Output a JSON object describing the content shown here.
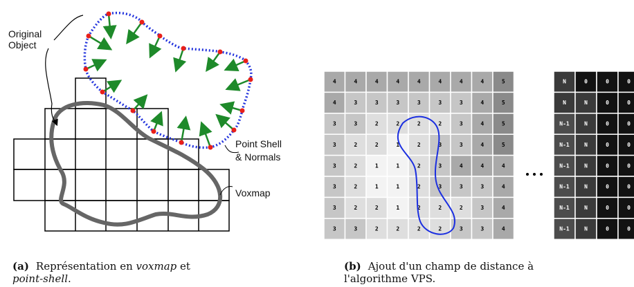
{
  "figure_a": {
    "labels": {
      "original_object": [
        "Original",
        "Object"
      ],
      "point_shell": [
        "Point Shell",
        "& Normals"
      ],
      "voxmap": "Voxmap"
    },
    "caption": {
      "tag": "(a)",
      "parts": [
        "Représentation en ",
        "voxmap",
        " et ",
        "point-shell",
        "."
      ]
    }
  },
  "figure_b": {
    "grid": [
      [
        4,
        4,
        4,
        4,
        4,
        4,
        4,
        4,
        5
      ],
      [
        4,
        3,
        3,
        3,
        3,
        3,
        3,
        4,
        5
      ],
      [
        3,
        3,
        2,
        2,
        2,
        2,
        3,
        4,
        5
      ],
      [
        3,
        2,
        2,
        1,
        2,
        3,
        3,
        4,
        5
      ],
      [
        3,
        2,
        1,
        1,
        2,
        3,
        4,
        4,
        4
      ],
      [
        3,
        2,
        1,
        1,
        2,
        3,
        3,
        3,
        4
      ],
      [
        3,
        2,
        2,
        1,
        2,
        2,
        2,
        3,
        4
      ],
      [
        3,
        3,
        2,
        2,
        2,
        2,
        3,
        3,
        4
      ]
    ],
    "grid_n": [
      [
        "N",
        "0",
        "0",
        "0"
      ],
      [
        "N",
        "N",
        "0",
        "0"
      ],
      [
        "N-1",
        "N",
        "0",
        "0"
      ],
      [
        "N-1",
        "N",
        "0",
        "0"
      ],
      [
        "N-1",
        "N",
        "0",
        "0"
      ],
      [
        "N-1",
        "N",
        "0",
        "0"
      ],
      [
        "N-1",
        "N",
        "0",
        "0"
      ],
      [
        "N-1",
        "N",
        "0",
        "0"
      ]
    ],
    "colors": {
      "5": "#8a8a8a",
      "4": "#a9a9a9",
      "3": "#c6c6c6",
      "2": "#dedede",
      "1": "#f3f3f3",
      "N": "#3a3a3a",
      "0": "#121212",
      "N-1": "#4c4c4c"
    },
    "caption": {
      "tag": "(b)",
      "line1": "Ajout d'un champ de distance à",
      "line2": "l'algorithme VPS."
    }
  }
}
